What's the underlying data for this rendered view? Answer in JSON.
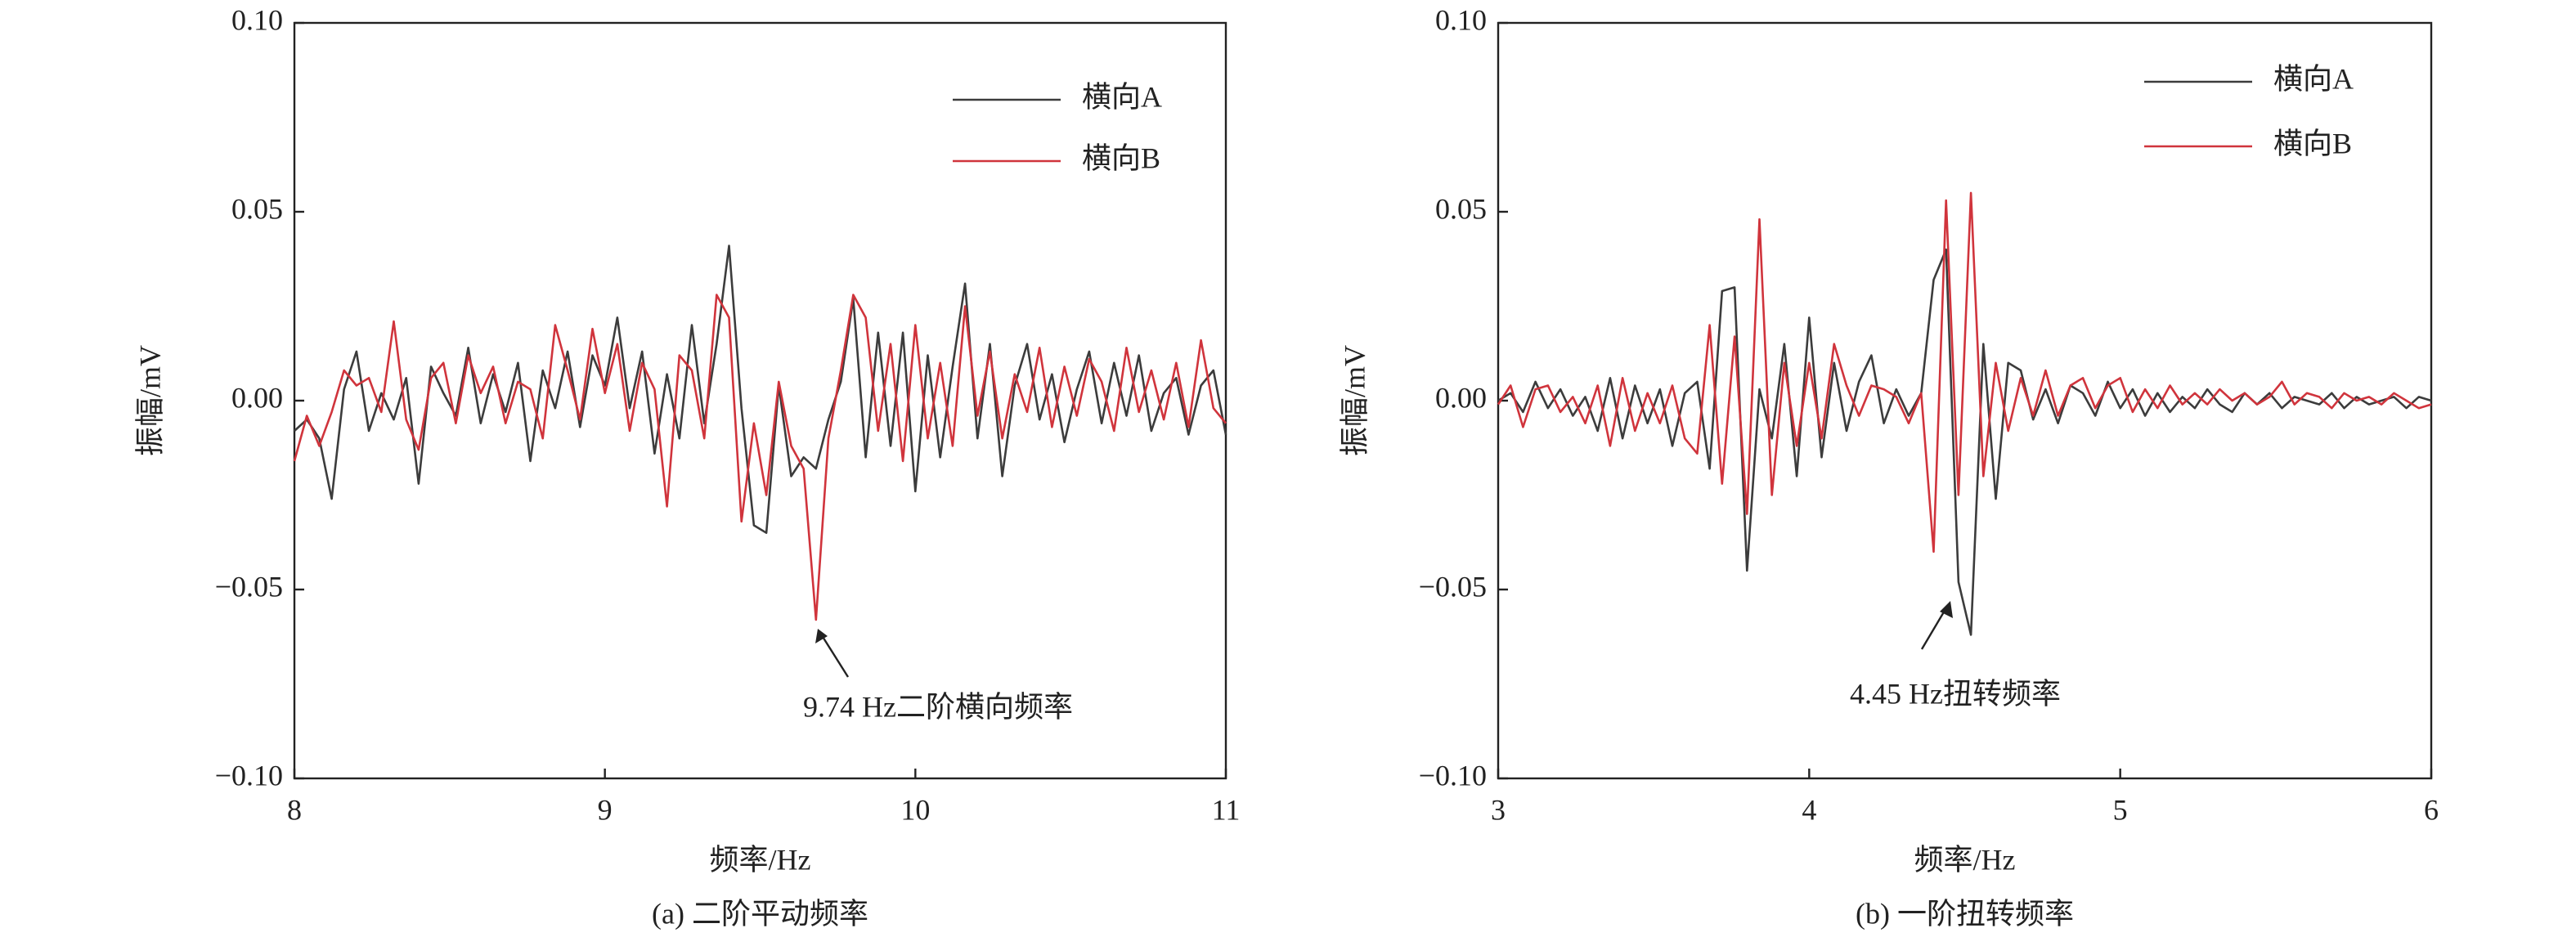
{
  "chart_data": [
    {
      "type": "line",
      "title": "(a) 二阶平动频率",
      "xlabel": "频率/Hz",
      "ylabel": "振幅/mV",
      "annotation": "9.74 Hz二阶横向频率",
      "x": [
        8.0,
        8.04,
        8.08,
        8.12,
        8.16,
        8.2,
        8.24,
        8.28,
        8.32,
        8.36,
        8.4,
        8.44,
        8.48,
        8.52,
        8.56,
        8.6,
        8.64,
        8.68,
        8.72,
        8.76,
        8.8,
        8.84,
        8.88,
        8.92,
        8.96,
        9.0,
        9.04,
        9.08,
        9.12,
        9.16,
        9.2,
        9.24,
        9.28,
        9.32,
        9.36,
        9.4,
        9.44,
        9.48,
        9.52,
        9.56,
        9.6,
        9.64,
        9.68,
        9.72,
        9.76,
        9.8,
        9.84,
        9.88,
        9.92,
        9.96,
        10.0,
        10.04,
        10.08,
        10.12,
        10.16,
        10.2,
        10.24,
        10.28,
        10.32,
        10.36,
        10.4,
        10.44,
        10.48,
        10.52,
        10.56,
        10.6,
        10.64,
        10.68,
        10.72,
        10.76,
        10.8,
        10.84,
        10.88,
        10.92,
        10.96,
        11.0
      ],
      "series": [
        {
          "name": "横向A",
          "color": "#3c3c3c",
          "values": [
            -0.008,
            -0.005,
            -0.01,
            -0.026,
            0.003,
            0.013,
            -0.008,
            0.002,
            -0.005,
            0.006,
            -0.022,
            0.009,
            0.002,
            -0.004,
            0.014,
            -0.006,
            0.007,
            -0.003,
            0.01,
            -0.016,
            0.008,
            -0.002,
            0.013,
            -0.007,
            0.012,
            0.004,
            0.022,
            -0.002,
            0.013,
            -0.014,
            0.007,
            -0.01,
            0.02,
            -0.006,
            0.015,
            0.041,
            -0.002,
            -0.033,
            -0.035,
            0.004,
            -0.02,
            -0.015,
            -0.018,
            -0.005,
            0.005,
            0.027,
            -0.015,
            0.018,
            -0.012,
            0.018,
            -0.024,
            0.012,
            -0.015,
            0.009,
            0.031,
            -0.01,
            0.015,
            -0.02,
            0.004,
            0.015,
            -0.005,
            0.007,
            -0.011,
            0.003,
            0.013,
            -0.006,
            0.01,
            -0.004,
            0.012,
            -0.008,
            0.002,
            0.006,
            -0.009,
            0.004,
            0.008,
            -0.009
          ]
        },
        {
          "name": "横向B",
          "color": "#d0343c",
          "values": [
            -0.016,
            -0.004,
            -0.012,
            -0.003,
            0.008,
            0.004,
            0.006,
            -0.003,
            0.021,
            -0.005,
            -0.013,
            0.006,
            0.01,
            -0.006,
            0.012,
            0.002,
            0.009,
            -0.006,
            0.005,
            0.003,
            -0.01,
            0.02,
            0.008,
            -0.005,
            0.019,
            0.002,
            0.015,
            -0.008,
            0.01,
            0.003,
            -0.028,
            0.012,
            0.008,
            -0.01,
            0.028,
            0.022,
            -0.032,
            -0.006,
            -0.025,
            0.005,
            -0.012,
            -0.018,
            -0.058,
            -0.01,
            0.008,
            0.028,
            0.022,
            -0.008,
            0.015,
            -0.016,
            0.02,
            -0.01,
            0.01,
            -0.012,
            0.025,
            -0.004,
            0.013,
            -0.01,
            0.007,
            -0.003,
            0.014,
            -0.007,
            0.009,
            -0.004,
            0.011,
            0.005,
            -0.008,
            0.014,
            -0.003,
            0.008,
            -0.005,
            0.01,
            -0.007,
            0.016,
            -0.002,
            -0.006
          ]
        }
      ],
      "xlim": [
        8,
        11
      ],
      "xticks": [
        8,
        9,
        10,
        11
      ],
      "ylim": [
        -0.1,
        0.1
      ],
      "yticks": [
        {
          "value": -0.1,
          "label": "−0.10"
        },
        {
          "value": -0.05,
          "label": "−0.05"
        },
        {
          "value": 0,
          "label": "0.00"
        },
        {
          "value": 0.05,
          "label": "0.05"
        },
        {
          "value": 0.1,
          "label": "0.10"
        }
      ]
    },
    {
      "type": "line",
      "title": "(b) 一阶扭转频率",
      "xlabel": "频率/Hz",
      "ylabel": "振幅/mV",
      "annotation": "4.45 Hz扭转频率",
      "x": [
        3.0,
        3.04,
        3.08,
        3.12,
        3.16,
        3.2,
        3.24,
        3.28,
        3.32,
        3.36,
        3.4,
        3.44,
        3.48,
        3.52,
        3.56,
        3.6,
        3.64,
        3.68,
        3.72,
        3.76,
        3.8,
        3.84,
        3.88,
        3.92,
        3.96,
        4.0,
        4.04,
        4.08,
        4.12,
        4.16,
        4.2,
        4.24,
        4.28,
        4.32,
        4.36,
        4.4,
        4.44,
        4.48,
        4.52,
        4.56,
        4.6,
        4.64,
        4.68,
        4.72,
        4.76,
        4.8,
        4.84,
        4.88,
        4.92,
        4.96,
        5.0,
        5.04,
        5.08,
        5.12,
        5.16,
        5.2,
        5.24,
        5.28,
        5.32,
        5.36,
        5.4,
        5.44,
        5.48,
        5.52,
        5.56,
        5.6,
        5.64,
        5.68,
        5.72,
        5.76,
        5.8,
        5.84,
        5.88,
        5.92,
        5.96,
        6.0
      ],
      "series": [
        {
          "name": "横向A",
          "color": "#3c3c3c",
          "values": [
            0,
            0.002,
            -0.003,
            0.005,
            -0.002,
            0.003,
            -0.004,
            0.001,
            -0.008,
            0.006,
            -0.01,
            0.004,
            -0.006,
            0.003,
            -0.012,
            0.002,
            0.005,
            -0.018,
            0.029,
            0.03,
            -0.045,
            0.003,
            -0.01,
            0.015,
            -0.02,
            0.022,
            -0.015,
            0.01,
            -0.008,
            0.005,
            0.012,
            -0.006,
            0.003,
            -0.004,
            0.002,
            0.032,
            0.04,
            -0.048,
            -0.062,
            0.015,
            -0.026,
            0.01,
            0.008,
            -0.005,
            0.003,
            -0.006,
            0.004,
            0.002,
            -0.004,
            0.005,
            -0.002,
            0.003,
            -0.004,
            0.002,
            -0.003,
            0.001,
            -0.002,
            0.003,
            -0.001,
            -0.003,
            0.002,
            -0.001,
            0.002,
            -0.002,
            0.001,
            0,
            -0.001,
            0.002,
            -0.002,
            0.001,
            -0.001,
            0,
            0.001,
            -0.002,
            0.001,
            0
          ]
        },
        {
          "name": "横向B",
          "color": "#d0343c",
          "values": [
            -0.001,
            0.004,
            -0.007,
            0.003,
            0.004,
            -0.003,
            0.001,
            -0.006,
            0.004,
            -0.012,
            0.006,
            -0.008,
            0.002,
            -0.006,
            0.004,
            -0.01,
            -0.014,
            0.02,
            -0.022,
            0.017,
            -0.03,
            0.048,
            -0.025,
            0.01,
            -0.012,
            0.01,
            -0.01,
            0.015,
            0.004,
            -0.004,
            0.004,
            0.003,
            0.001,
            -0.006,
            0.002,
            -0.04,
            0.053,
            -0.025,
            0.055,
            -0.02,
            0.01,
            -0.008,
            0.006,
            -0.004,
            0.008,
            -0.004,
            0.004,
            0.006,
            -0.002,
            0.004,
            0.006,
            -0.003,
            0.003,
            -0.002,
            0.004,
            -0.001,
            0.002,
            -0.001,
            0.003,
            0,
            0.002,
            -0.001,
            0.001,
            0.005,
            -0.001,
            0.002,
            0.001,
            -0.002,
            0.002,
            0,
            0.001,
            -0.001,
            0.002,
            0,
            -0.002,
            -0.001
          ]
        }
      ],
      "xlim": [
        3,
        6
      ],
      "xticks": [
        3,
        4,
        5,
        6
      ],
      "ylim": [
        -0.1,
        0.1
      ],
      "yticks": [
        {
          "value": -0.1,
          "label": "−0.10"
        },
        {
          "value": -0.05,
          "label": "−0.05"
        },
        {
          "value": 0,
          "label": "0.00"
        },
        {
          "value": 0.05,
          "label": "0.05"
        },
        {
          "value": 0.1,
          "label": "0.10"
        }
      ]
    }
  ]
}
